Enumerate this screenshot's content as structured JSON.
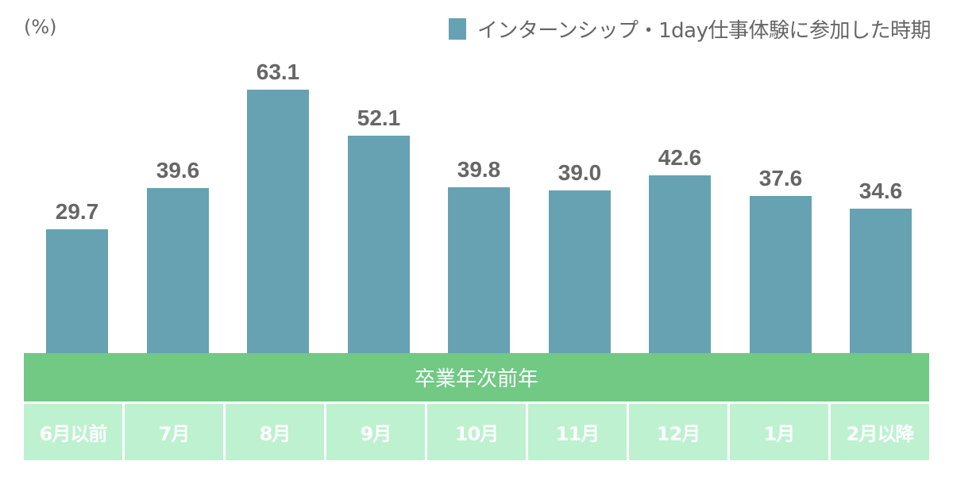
{
  "chart_data": {
    "type": "bar",
    "title": "",
    "unit_label": "(%)",
    "legend": [
      {
        "label": "インターンシップ・1day仕事体験に参加した時期",
        "color": "#66a2b2"
      }
    ],
    "legend_position": "top-right",
    "group_label": "卒業年次前年",
    "categories": [
      "6月以前",
      "7月",
      "8月",
      "9月",
      "10月",
      "11月",
      "12月",
      "1月",
      "2月以降"
    ],
    "series": [
      {
        "name": "インターンシップ・1day仕事体験に参加した時期",
        "values": [
          29.7,
          39.6,
          63.1,
          52.1,
          39.8,
          39.0,
          42.6,
          37.6,
          34.6
        ]
      }
    ],
    "value_labels": [
      "29.7",
      "39.6",
      "63.1",
      "52.1",
      "39.8",
      "39.0",
      "42.6",
      "37.6",
      "34.6"
    ],
    "xlabel": "",
    "ylabel": "(%)",
    "ylim": [
      0,
      70
    ],
    "grid": false
  },
  "colors": {
    "bar": "#66a2b2",
    "band": "#71c984",
    "cell": "#bdf1d0",
    "text": "#666666"
  }
}
